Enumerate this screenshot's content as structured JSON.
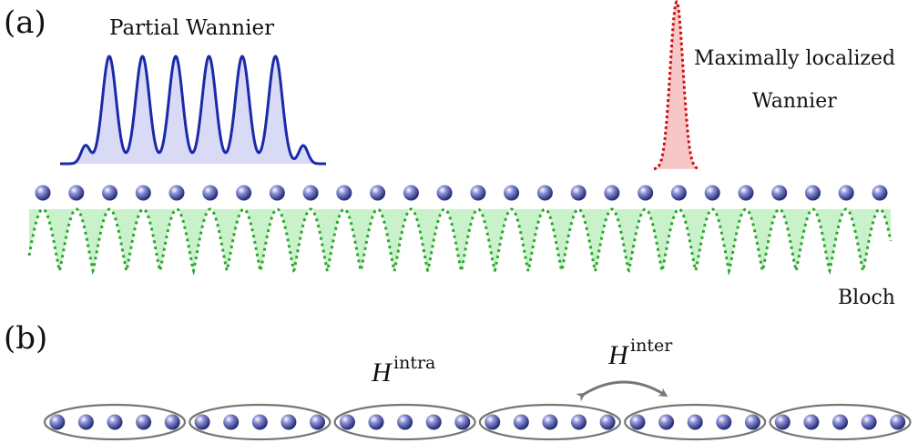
{
  "panel_a": {
    "label": "(a)",
    "partial_wannier_label": "Partial Wannier",
    "mlwf_label_line1": "Maximally localized",
    "mlwf_label_line2": "Wannier",
    "bloch_label": "Bloch",
    "lattice_sites": 26,
    "partial_wannier_peaks": 6,
    "colors": {
      "atom": "#3a3fa0",
      "partial_wannier_line": "#1a2aa8",
      "partial_wannier_fill": "#d8daf6",
      "mlwf_line": "#cc1010",
      "mlwf_fill": "#f7c6c6",
      "bloch_line": "#2aa82a",
      "bloch_fill": "#c9f2cb"
    }
  },
  "panel_b": {
    "label": "(b)",
    "h_symbol": "H",
    "intra_superscript": "intra",
    "inter_superscript": "inter",
    "groups": 6,
    "atoms_per_group": 5,
    "colors": {
      "ellipse": "#777777",
      "arrow": "#777777"
    }
  }
}
